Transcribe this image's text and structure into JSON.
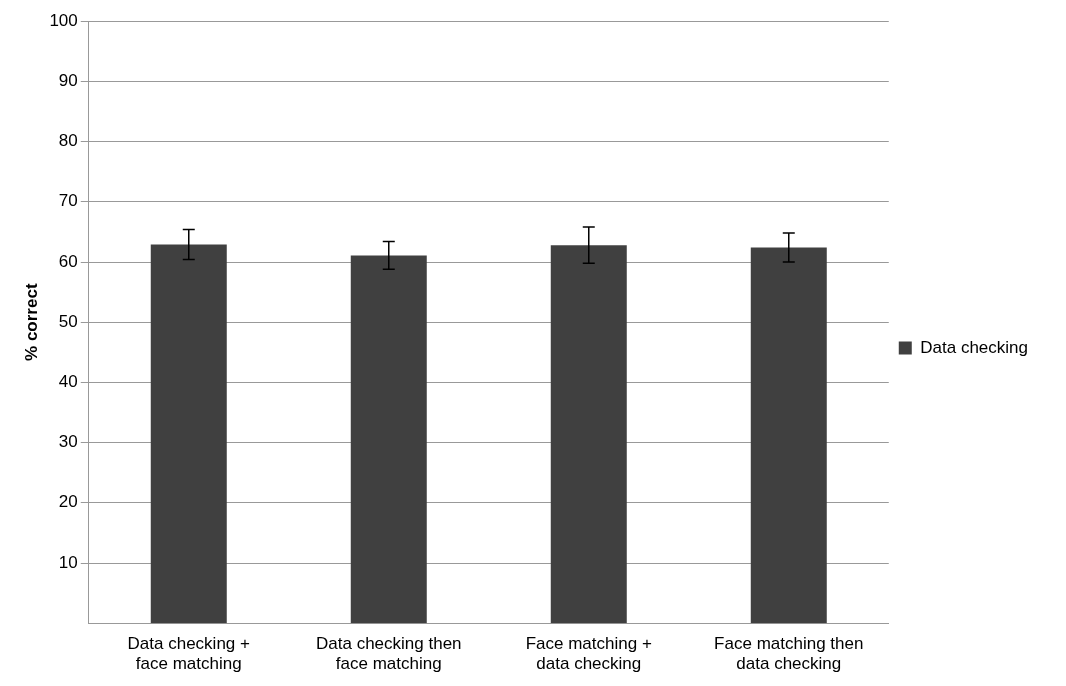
{
  "chart_data": {
    "type": "bar",
    "ylabel": "% correct",
    "categories": [
      "Data checking + face matching",
      "Data checking then face matching",
      "Face matching + data checking",
      "Face matching then data checking"
    ],
    "series": [
      {
        "name": "Data checking",
        "color": "#404040",
        "values": [
          62.9,
          61.1,
          62.8,
          62.4
        ],
        "errors": [
          2.5,
          2.3,
          3.0,
          2.4
        ]
      }
    ],
    "ylim": [
      0,
      100
    ],
    "yticks": [
      10,
      20,
      30,
      40,
      50,
      60,
      70,
      80,
      90,
      100
    ],
    "grid": "y",
    "legend": "right"
  }
}
